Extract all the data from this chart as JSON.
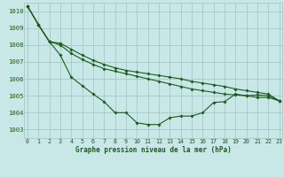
{
  "xlabel": "Graphe pression niveau de la mer (hPa)",
  "ylim": [
    1002.5,
    1010.5
  ],
  "xlim": [
    -0.3,
    23.3
  ],
  "yticks": [
    1003,
    1004,
    1005,
    1006,
    1007,
    1008,
    1009,
    1010
  ],
  "xticks": [
    0,
    1,
    2,
    3,
    4,
    5,
    6,
    7,
    8,
    9,
    10,
    11,
    12,
    13,
    14,
    15,
    16,
    17,
    18,
    19,
    20,
    21,
    22,
    23
  ],
  "bg_color": "#c8e8e8",
  "grid_color": "#a8c8c8",
  "line_color": "#1a5c1a",
  "series": [
    [
      1010.3,
      1009.2,
      1008.2,
      1007.4,
      1006.1,
      1005.6,
      1005.1,
      1004.65,
      1004.0,
      1004.0,
      1003.4,
      1003.3,
      1003.3,
      1003.7,
      1003.8,
      1003.8,
      1004.0,
      1004.6,
      1004.65,
      1005.1,
      1005.0,
      1004.9,
      1004.9,
      1004.7
    ],
    [
      1010.3,
      1009.2,
      1008.2,
      1008.0,
      1007.5,
      1007.15,
      1006.85,
      1006.6,
      1006.45,
      1006.3,
      1006.15,
      1006.0,
      1005.85,
      1005.7,
      1005.55,
      1005.4,
      1005.3,
      1005.2,
      1005.1,
      1005.05,
      1005.0,
      1005.05,
      1005.0,
      1004.7
    ],
    [
      1010.3,
      1009.2,
      1008.2,
      1008.1,
      1007.75,
      1007.4,
      1007.1,
      1006.85,
      1006.65,
      1006.5,
      1006.4,
      1006.3,
      1006.2,
      1006.1,
      1006.0,
      1005.85,
      1005.75,
      1005.65,
      1005.55,
      1005.4,
      1005.3,
      1005.2,
      1005.1,
      1004.7
    ]
  ]
}
